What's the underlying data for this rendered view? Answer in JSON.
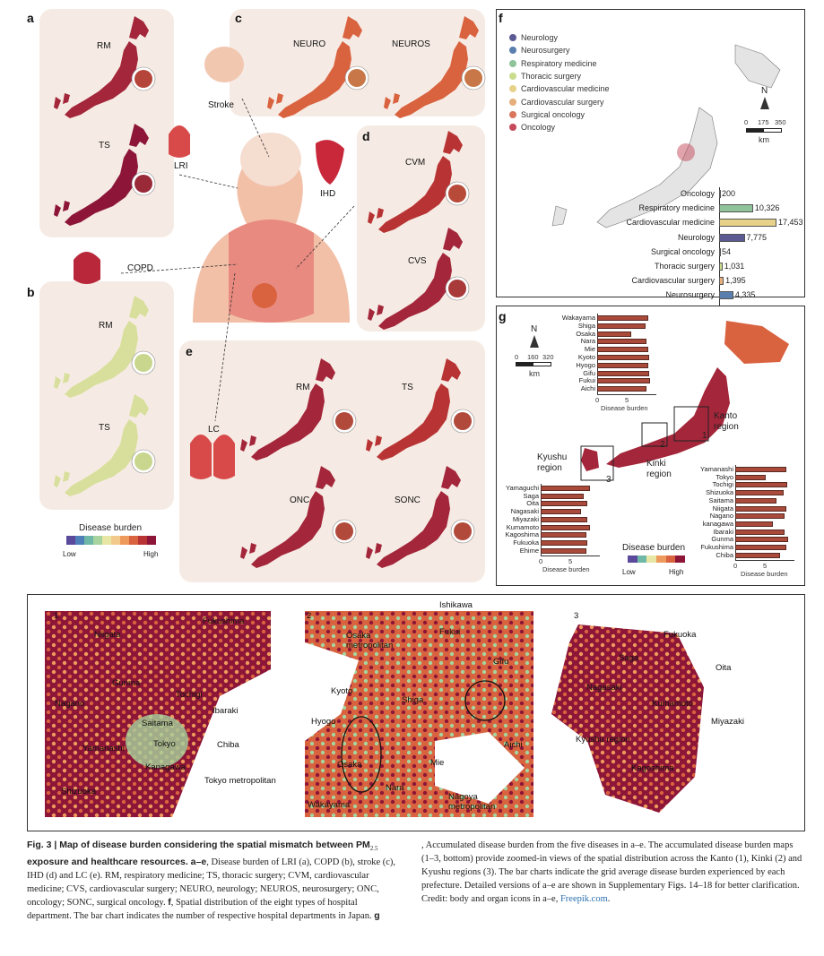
{
  "panels": {
    "a": {
      "letter": "a",
      "maps": [
        "RM",
        "TS"
      ],
      "organ": "LRI"
    },
    "b": {
      "letter": "b",
      "maps": [
        "RM",
        "TS"
      ],
      "organ": "COPD"
    },
    "c": {
      "letter": "c",
      "maps": [
        "NEURO",
        "NEUROS"
      ],
      "organ": "Stroke"
    },
    "d": {
      "letter": "d",
      "maps": [
        "CVM",
        "CVS"
      ],
      "organ": "IHD"
    },
    "e": {
      "letter": "e",
      "maps": [
        "RM",
        "TS",
        "ONC",
        "SONC"
      ],
      "organ": "LC"
    }
  },
  "legend_burden": {
    "title": "Disease burden",
    "low": "Low",
    "high": "High",
    "colors": [
      "#5b4a9c",
      "#4f7fb8",
      "#6fb7a6",
      "#a6d39e",
      "#e8e6a4",
      "#f2c98a",
      "#ee9a5c",
      "#d9623f",
      "#b83434",
      "#8c1538"
    ]
  },
  "panel_f": {
    "letter": "f",
    "legend": [
      {
        "label": "Neurology",
        "color": "#5c5a92"
      },
      {
        "label": "Neurosurgery",
        "color": "#5a7fae"
      },
      {
        "label": "Respiratory medicine",
        "color": "#8fc39a"
      },
      {
        "label": "Thoracic surgery",
        "color": "#c9dd8c"
      },
      {
        "label": "Cardiovascular medicine",
        "color": "#e8d28a"
      },
      {
        "label": "Cardiovascular surgery",
        "color": "#e5ae7a"
      },
      {
        "label": "Surgical oncology",
        "color": "#d9765c"
      },
      {
        "label": "Oncology",
        "color": "#c44a5c"
      }
    ],
    "scale": {
      "north": "N",
      "ticks": [
        "0",
        "175",
        "350"
      ],
      "unit": "km"
    }
  },
  "panel_g": {
    "letter": "g",
    "scale": {
      "north": "N",
      "ticks": [
        "0",
        "160",
        "320"
      ],
      "unit": "km"
    },
    "regions": [
      "Kanto region",
      "Kinki region",
      "Kyushu region"
    ],
    "boxes": [
      "1",
      "2",
      "3"
    ],
    "legend": {
      "title": "Disease burden",
      "low": "Low",
      "high": "High"
    }
  },
  "chart_data": [
    {
      "type": "bar",
      "orientation": "horizontal",
      "categories": [
        "Oncology",
        "Respiratory medicine",
        "Cardiovascular medicine",
        "Neurology",
        "Surgical oncology",
        "Thoracic surgery",
        "Cardiovascular surgery",
        "Neurosurgery"
      ],
      "values": [
        200,
        10326,
        17453,
        7775,
        54,
        1031,
        1395,
        4335
      ],
      "value_labels": [
        "200",
        "10,326",
        "17,453",
        "7,775",
        "54",
        "1,031",
        "1,395",
        "4,335"
      ],
      "colors": [
        "#c44a5c",
        "#8fc39a",
        "#e8d28a",
        "#5c5a92",
        "#d9765c",
        "#c9dd8c",
        "#e5ae7a",
        "#5a7fae"
      ],
      "xlim": [
        0,
        17453
      ]
    },
    {
      "type": "bar",
      "orientation": "horizontal",
      "region": "Kinki",
      "categories": [
        "Wakayama",
        "Shiga",
        "Osaka",
        "Nara",
        "Mie",
        "Kyoto",
        "Hyogo",
        "Gifu",
        "Fukui",
        "Aichi"
      ],
      "values": [
        8.6,
        8.2,
        5.8,
        8.3,
        8.7,
        8.8,
        8.7,
        8.8,
        9.0,
        8.4
      ],
      "xlabel": "Disease burden",
      "xticks": [
        "0",
        "5"
      ],
      "xlim": [
        0,
        10
      ]
    },
    {
      "type": "bar",
      "orientation": "horizontal",
      "region": "Kyushu",
      "categories": [
        "Yamaguchi",
        "Saga",
        "Oita",
        "Nagasaki",
        "Miyazaki",
        "Kumamoto",
        "Kagoshima",
        "Fukuoka",
        "Ehime"
      ],
      "values": [
        8.3,
        7.2,
        7.9,
        6.8,
        7.9,
        8.3,
        7.7,
        7.9,
        7.8
      ],
      "xlabel": "Disease burden",
      "xticks": [
        "0",
        "5"
      ],
      "xlim": [
        0,
        10
      ]
    },
    {
      "type": "bar",
      "orientation": "horizontal",
      "region": "Kanto",
      "categories": [
        "Yamanashi",
        "Tokyo",
        "Tochigi",
        "Shizuoka",
        "Saitama",
        "Niigata",
        "Nagano",
        "kanagawa",
        "Ibaraki",
        "Gunma",
        "Fukushima",
        "Chiba"
      ],
      "values": [
        8.7,
        5.1,
        8.8,
        8.2,
        7.0,
        8.7,
        8.4,
        6.3,
        8.4,
        8.9,
        8.6,
        7.5
      ],
      "xlabel": "Disease burden",
      "xticks": [
        "0",
        "5"
      ],
      "xlim": [
        0,
        10
      ]
    }
  ],
  "zoom": {
    "kanto": {
      "index": "1",
      "labels": [
        "Fukushima",
        "Niigata",
        "Gunma",
        "Tochigi",
        "Nagano",
        "Ibaraki",
        "Saitama",
        "Yamanashi",
        "Tokyo",
        "Chiba",
        "Kanagawa",
        "Shizuoka",
        "Tokyo metropolitan"
      ]
    },
    "kinki": {
      "index": "2",
      "labels": [
        "Ishikawa",
        "Fukui",
        "Osaka metropolitan",
        "Gifu",
        "Kyoto",
        "Shiga",
        "Hyogo",
        "Aichi",
        "Osaka",
        "Mie",
        "Nara",
        "Wakayama",
        "Nagoya metropolitan"
      ]
    },
    "kyushu": {
      "index": "3",
      "labels": [
        "Fukuoka",
        "Saga",
        "Oita",
        "Nagasaki",
        "Kumamoto",
        "Miyazaki",
        "Kyushu region",
        "Kagoshima"
      ]
    }
  },
  "caption": {
    "lead": "Fig. 3 | Map of disease burden considering the spatial mismatch between PM",
    "sub": "2.5",
    "lead2": " exposure and healthcare resources. a–e",
    "part1": ", Disease burden of LRI (a), COPD (b), stroke (c), IHD (d) and LC (e). RM, respiratory medicine; TS, thoracic surgery; CVM, cardiovascular medicine; CVS, cardiovascular surgery; NEURO, neurology; NEUROS, neurosurgery; ONC, oncology; SONC, surgical oncology. ",
    "f": "f",
    "part2": ", Spatial distribution of the eight types of hospital department. The bar chart indicates the number of respective hospital departments in Japan. ",
    "g": "g",
    "part3": ", Accumulated disease burden from the five diseases in a–e. The accumulated disease burden maps (1–3, bottom) provide zoomed-in views of the spatial distribution across the Kanto (1), Kinki (2) and Kyushu regions (3). The bar charts indicate the grid average disease burden experienced by each prefecture. Detailed versions of a–e are shown in Supplementary Figs. 14–18 for better clarification. Credit: body and organ icons in a–e, ",
    "link": "Freepik.com",
    "end": "."
  }
}
